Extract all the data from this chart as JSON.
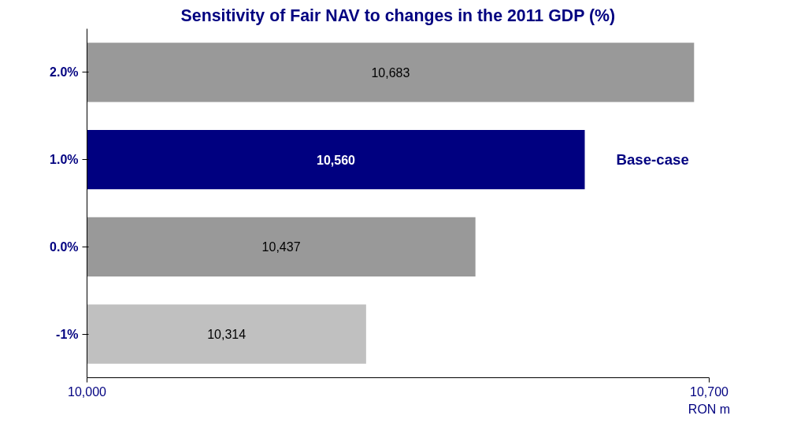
{
  "chart_data": {
    "type": "bar",
    "orientation": "horizontal",
    "title": "Sensitivity of Fair NAV to changes in the 2011 GDP (%)",
    "xlabel": "RON m",
    "categories": [
      "2.0%",
      "1.0%",
      "0.0%",
      "-1%"
    ],
    "values": [
      10683,
      10560,
      10437,
      10314
    ],
    "colors": [
      "#999999",
      "#000080",
      "#999999",
      "#c0c0c0"
    ],
    "value_labels": [
      "10,683",
      "10,560",
      "10,437",
      "10,314"
    ],
    "xlim": [
      10000,
      10700
    ],
    "xticks": [
      {
        "value": 10000,
        "label": "10,000"
      },
      {
        "value": 10700,
        "label": "10,700"
      }
    ],
    "annotations": [
      "Base-case"
    ],
    "grid": false
  }
}
